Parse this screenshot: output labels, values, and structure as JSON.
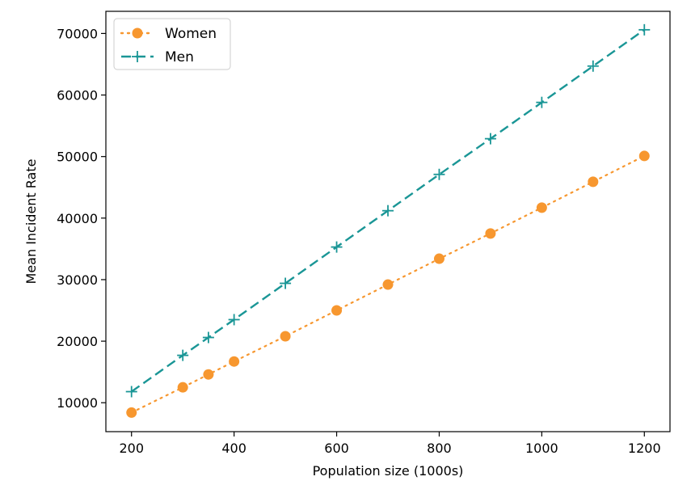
{
  "chart_data": {
    "type": "line",
    "title": "",
    "xlabel": "Population size (1000s)",
    "ylabel": "Mean Incident Rate",
    "xlim": [
      150,
      1250
    ],
    "ylim": [
      5300,
      73600
    ],
    "xticks": [
      200,
      400,
      600,
      800,
      1000,
      1200
    ],
    "yticks": [
      10000,
      20000,
      30000,
      40000,
      50000,
      60000,
      70000
    ],
    "grid": false,
    "legend_position": "top-left",
    "series": [
      {
        "name": "Women",
        "color": "#f7972f",
        "line_style": "dotted",
        "marker": "circle",
        "x": [
          200,
          300,
          350,
          400,
          500,
          600,
          700,
          800,
          900,
          1000,
          1100,
          1200
        ],
        "y": [
          8400,
          12500,
          14600,
          16700,
          20800,
          25000,
          29200,
          33400,
          37500,
          41700,
          45900,
          50100
        ]
      },
      {
        "name": "Men",
        "color": "#1a9696",
        "line_style": "dashed",
        "marker": "plus",
        "x": [
          200,
          300,
          350,
          400,
          500,
          600,
          700,
          800,
          900,
          1000,
          1100,
          1200
        ],
        "y": [
          11800,
          17700,
          20600,
          23500,
          29400,
          35300,
          41200,
          47100,
          52900,
          58800,
          64700,
          70600
        ]
      }
    ]
  }
}
